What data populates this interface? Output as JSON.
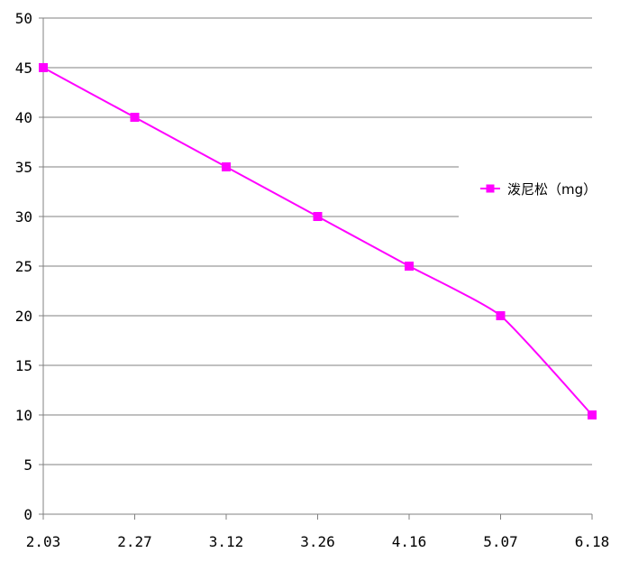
{
  "chart_data": {
    "type": "line",
    "title": "",
    "xlabel": "",
    "ylabel": "",
    "categories": [
      "2.03",
      "2.27",
      "3.12",
      "3.26",
      "4.16",
      "5.07",
      "6.18"
    ],
    "series": [
      {
        "name": "泼尼松（mg）",
        "values": [
          45,
          40,
          35,
          30,
          25,
          20,
          10
        ],
        "color": "#ff00ff",
        "marker": "square"
      }
    ],
    "ylim": [
      0,
      50
    ],
    "yticks": [
      0,
      5,
      10,
      15,
      20,
      25,
      30,
      35,
      40,
      45,
      50
    ],
    "grid": "horizontal",
    "legend_position": "right"
  }
}
